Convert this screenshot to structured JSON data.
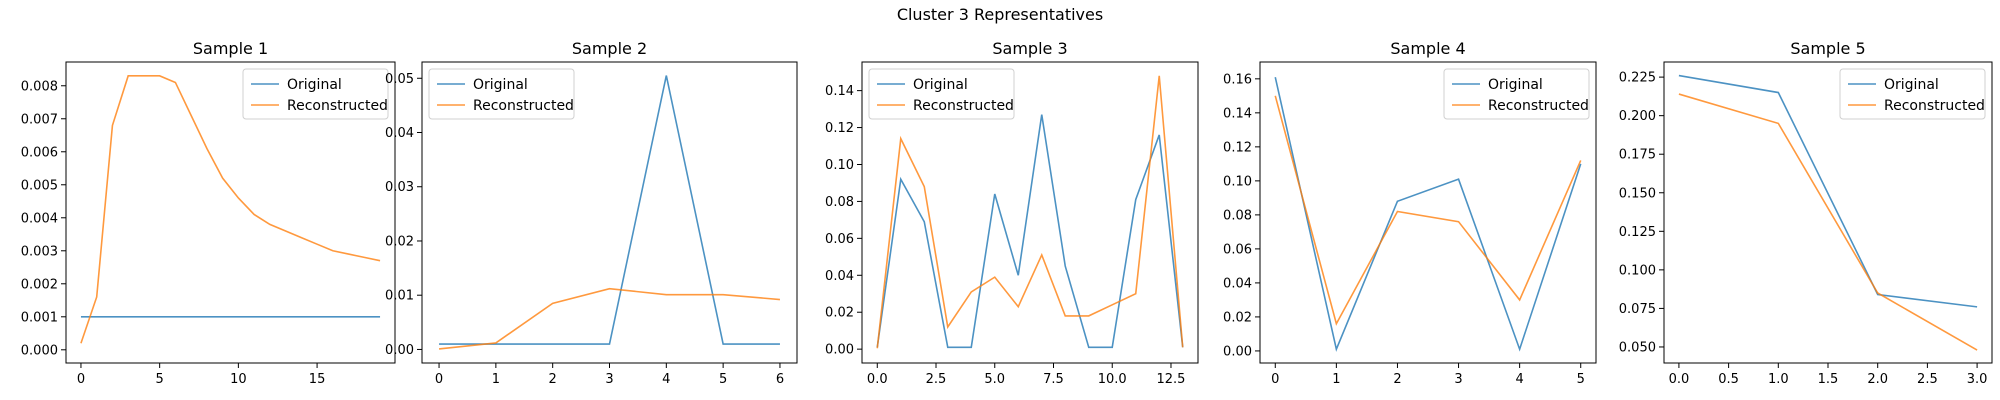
{
  "suptitle": "Cluster 3 Representatives",
  "colors": {
    "original": "#1f77b4",
    "reconstructed": "#ff7f0e"
  },
  "chart_data": [
    {
      "type": "line",
      "title": "Sample 1",
      "legend": "top-right",
      "xlim": [
        -0.95,
        19.95
      ],
      "ylim": [
        -0.0004,
        0.00872
      ],
      "xticks": [
        0,
        5,
        10,
        15
      ],
      "xtick_labels": [
        "0",
        "5",
        "10",
        "15"
      ],
      "yticks": [
        0,
        0.001,
        0.002,
        0.003,
        0.004,
        0.005,
        0.006,
        0.007,
        0.008
      ],
      "ytick_labels": [
        "0.000",
        "0.001",
        "0.002",
        "0.003",
        "0.004",
        "0.005",
        "0.006",
        "0.007",
        "0.008"
      ],
      "series": [
        {
          "name": "Original",
          "x": [
            0,
            1,
            2,
            3,
            4,
            5,
            6,
            7,
            8,
            9,
            10,
            11,
            12,
            13,
            14,
            15,
            16,
            17,
            18,
            19
          ],
          "y": [
            0.001,
            0.001,
            0.001,
            0.001,
            0.001,
            0.001,
            0.001,
            0.001,
            0.001,
            0.001,
            0.001,
            0.001,
            0.001,
            0.001,
            0.001,
            0.001,
            0.001,
            0.001,
            0.001,
            0.001
          ]
        },
        {
          "name": "Reconstructed",
          "x": [
            0,
            1,
            2,
            3,
            4,
            5,
            6,
            7,
            8,
            9,
            10,
            11,
            12,
            13,
            14,
            15,
            16,
            17,
            18,
            19
          ],
          "y": [
            0.0002,
            0.0016,
            0.0068,
            0.0083,
            0.0083,
            0.0083,
            0.0081,
            0.0071,
            0.0061,
            0.0052,
            0.0046,
            0.0041,
            0.0038,
            0.0036,
            0.0034,
            0.0032,
            0.003,
            0.0029,
            0.0028,
            0.0027
          ]
        }
      ]
    },
    {
      "type": "line",
      "title": "Sample 2",
      "legend": "top-left",
      "xlim": [
        -0.3,
        6.3
      ],
      "ylim": [
        -0.0025,
        0.053
      ],
      "xticks": [
        0,
        1,
        2,
        3,
        4,
        5,
        6
      ],
      "xtick_labels": [
        "0",
        "1",
        "2",
        "3",
        "4",
        "5",
        "6"
      ],
      "yticks": [
        0,
        0.01,
        0.02,
        0.03,
        0.04,
        0.05
      ],
      "ytick_labels": [
        "0.00",
        "0.01",
        "0.02",
        "0.03",
        "0.04",
        "0.05"
      ],
      "series": [
        {
          "name": "Original",
          "x": [
            0,
            1,
            2,
            3,
            4,
            5,
            6
          ],
          "y": [
            0.001,
            0.001,
            0.001,
            0.001,
            0.0505,
            0.001,
            0.001
          ]
        },
        {
          "name": "Reconstructed",
          "x": [
            0,
            1,
            2,
            3,
            4,
            5,
            6
          ],
          "y": [
            0.0001,
            0.0012,
            0.0085,
            0.0112,
            0.0101,
            0.0101,
            0.0092
          ]
        }
      ]
    },
    {
      "type": "line",
      "title": "Sample 3",
      "legend": "top-left",
      "xlim": [
        -0.65,
        13.65
      ],
      "ylim": [
        -0.0075,
        0.1555
      ],
      "xticks": [
        0,
        2.5,
        5,
        7.5,
        10,
        12.5
      ],
      "xtick_labels": [
        "0.0",
        "2.5",
        "5.0",
        "7.5",
        "10.0",
        "12.5"
      ],
      "yticks": [
        0,
        0.02,
        0.04,
        0.06,
        0.08,
        0.1,
        0.12,
        0.14
      ],
      "ytick_labels": [
        "0.00",
        "0.02",
        "0.04",
        "0.06",
        "0.08",
        "0.10",
        "0.12",
        "0.14"
      ],
      "series": [
        {
          "name": "Original",
          "x": [
            0,
            1,
            2,
            3,
            4,
            5,
            6,
            7,
            8,
            9,
            10,
            11,
            12,
            13
          ],
          "y": [
            0.001,
            0.092,
            0.069,
            0.001,
            0.001,
            0.084,
            0.04,
            0.127,
            0.045,
            0.001,
            0.001,
            0.081,
            0.116,
            0.001
          ]
        },
        {
          "name": "Reconstructed",
          "x": [
            0,
            1,
            2,
            3,
            4,
            5,
            6,
            7,
            8,
            9,
            10,
            11,
            12,
            13
          ],
          "y": [
            0.0005,
            0.114,
            0.088,
            0.012,
            0.031,
            0.039,
            0.023,
            0.051,
            0.018,
            0.018,
            0.024,
            0.03,
            0.148,
            0.001
          ]
        }
      ]
    },
    {
      "type": "line",
      "title": "Sample 4",
      "legend": "top-right",
      "xlim": [
        -0.25,
        5.25
      ],
      "ylim": [
        -0.0071,
        0.1699
      ],
      "xticks": [
        0,
        1,
        2,
        3,
        4,
        5
      ],
      "xtick_labels": [
        "0",
        "1",
        "2",
        "3",
        "4",
        "5"
      ],
      "yticks": [
        0,
        0.02,
        0.04,
        0.06,
        0.08,
        0.1,
        0.12,
        0.14,
        0.16
      ],
      "ytick_labels": [
        "0.00",
        "0.02",
        "0.04",
        "0.06",
        "0.08",
        "0.10",
        "0.12",
        "0.14",
        "0.16"
      ],
      "series": [
        {
          "name": "Original",
          "x": [
            0,
            1,
            2,
            3,
            4,
            5
          ],
          "y": [
            0.161,
            0.001,
            0.088,
            0.101,
            0.001,
            0.11
          ]
        },
        {
          "name": "Reconstructed",
          "x": [
            0,
            1,
            2,
            3,
            4,
            5
          ],
          "y": [
            0.15,
            0.016,
            0.082,
            0.076,
            0.03,
            0.112
          ]
        }
      ]
    },
    {
      "type": "line",
      "title": "Sample 5",
      "legend": "top-right",
      "xlim": [
        -0.15,
        3.15
      ],
      "ylim": [
        0.0396,
        0.2348
      ],
      "xticks": [
        0,
        0.5,
        1,
        1.5,
        2,
        2.5,
        3
      ],
      "xtick_labels": [
        "0.0",
        "0.5",
        "1.0",
        "1.5",
        "2.0",
        "2.5",
        "3.0"
      ],
      "yticks": [
        0.05,
        0.075,
        0.1,
        0.125,
        0.15,
        0.175,
        0.2,
        0.225
      ],
      "ytick_labels": [
        "0.050",
        "0.075",
        "0.100",
        "0.125",
        "0.150",
        "0.175",
        "0.200",
        "0.225"
      ],
      "series": [
        {
          "name": "Original",
          "x": [
            0,
            1,
            2,
            3
          ],
          "y": [
            0.226,
            0.215,
            0.084,
            0.076
          ]
        },
        {
          "name": "Reconstructed",
          "x": [
            0,
            1,
            2,
            3
          ],
          "y": [
            0.214,
            0.195,
            0.085,
            0.048
          ]
        }
      ]
    }
  ]
}
